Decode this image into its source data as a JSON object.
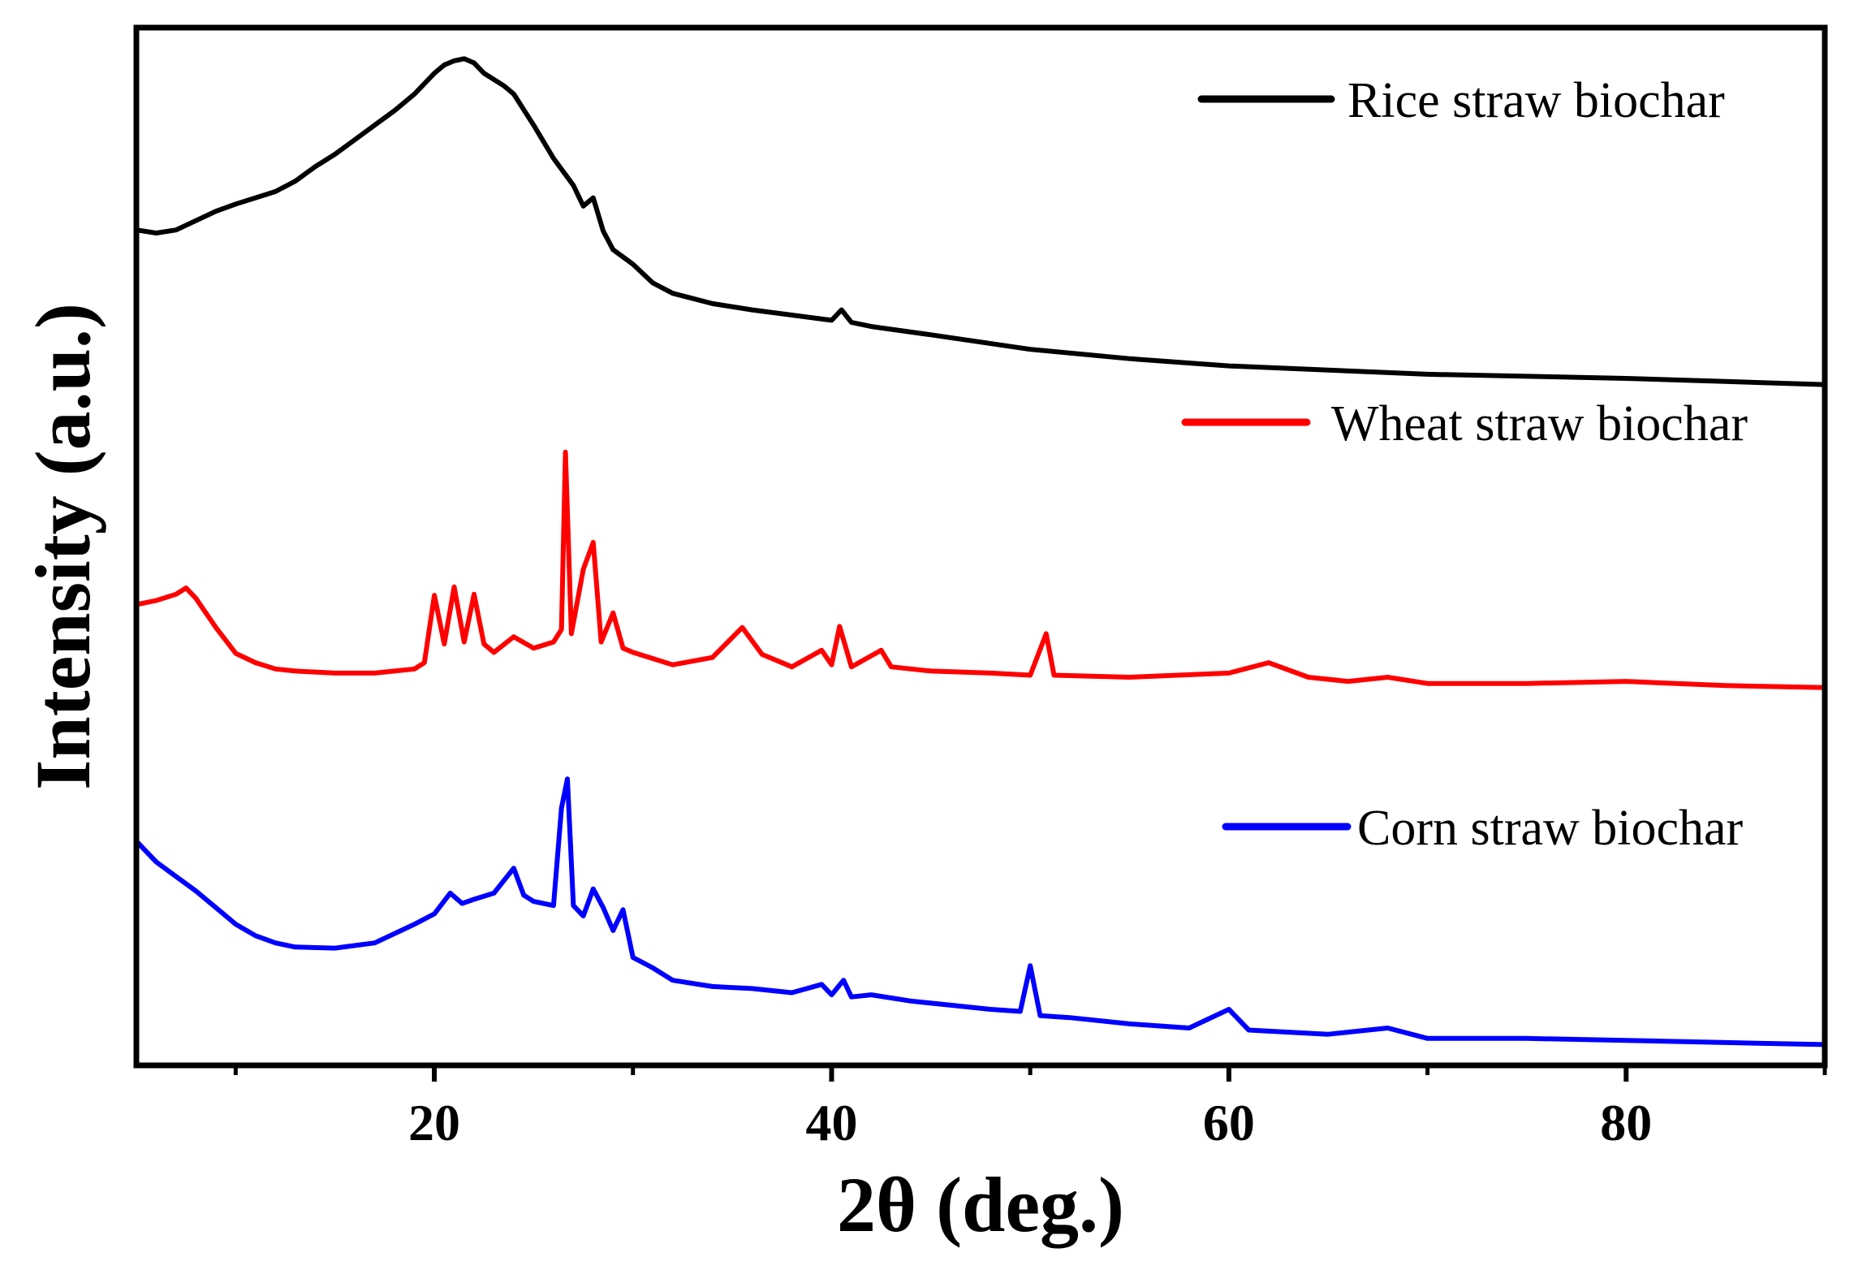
{
  "chart_data": {
    "type": "line",
    "title": "",
    "xlabel": "2θ (deg.)",
    "ylabel": "Intensity (a.u.)",
    "xlim": [
      5,
      90
    ],
    "ylim": [
      0,
      100
    ],
    "x_ticks": [
      20,
      40,
      60,
      80
    ],
    "x_minor_ticks": [
      10,
      30,
      50,
      70,
      90
    ],
    "y_tick_labels": false,
    "grid": false,
    "legend": "per-series, right side next to each curve",
    "series": [
      {
        "name": "Rice straw biochar",
        "color": "#000000",
        "x": [
          5,
          6,
          7,
          8,
          9,
          10,
          11,
          12,
          13,
          14,
          15,
          16,
          17,
          18,
          19,
          20,
          20.5,
          21,
          21.5,
          22,
          22.5,
          23,
          23.5,
          24,
          25,
          26,
          27,
          27.5,
          28,
          28.5,
          29,
          30,
          31,
          32,
          34,
          36,
          38,
          40,
          40.5,
          41,
          42,
          45,
          50,
          55,
          60,
          65,
          70,
          75,
          80,
          85,
          90
        ],
        "values": [
          80.5,
          80.2,
          80.5,
          81.4,
          82.3,
          83.0,
          83.6,
          84.2,
          85.2,
          86.6,
          87.8,
          89.2,
          90.6,
          92.0,
          93.6,
          95.6,
          96.4,
          96.8,
          97.0,
          96.6,
          95.6,
          95.0,
          94.4,
          93.6,
          90.6,
          87.4,
          84.8,
          82.8,
          83.6,
          80.4,
          78.6,
          77.2,
          75.4,
          74.4,
          73.4,
          72.8,
          72.3,
          71.8,
          72.8,
          71.6,
          71.2,
          70.4,
          69.0,
          68.1,
          67.4,
          67.0,
          66.6,
          66.4,
          66.2,
          65.9,
          65.6
        ]
      },
      {
        "name": "Wheat straw biochar",
        "color": "#ff0000",
        "x": [
          5,
          6,
          7,
          7.5,
          8,
          9,
          10,
          11,
          12,
          13,
          15,
          17,
          19,
          19.5,
          20,
          20.5,
          21,
          21.5,
          22,
          22.5,
          23,
          24,
          25,
          26,
          26.4,
          26.6,
          26.9,
          27.5,
          28,
          28.4,
          29,
          29.5,
          30,
          31,
          32,
          34,
          35.5,
          36.5,
          38,
          39.5,
          40,
          40.4,
          41,
          42.5,
          43,
          45,
          48,
          50,
          50.8,
          51.2,
          55,
          60,
          62,
          64,
          66,
          68,
          70,
          75,
          80,
          85,
          90
        ],
        "values": [
          44.4,
          44.8,
          45.4,
          46.0,
          45.0,
          42.2,
          39.7,
          38.8,
          38.2,
          38.0,
          37.8,
          37.8,
          38.2,
          38.8,
          45.3,
          40.6,
          46.1,
          40.8,
          45.4,
          40.6,
          39.8,
          41.3,
          40.2,
          40.8,
          42.0,
          59.1,
          41.6,
          47.8,
          50.4,
          40.8,
          43.6,
          40.2,
          39.8,
          39.2,
          38.6,
          39.3,
          42.2,
          39.6,
          38.4,
          40.0,
          38.6,
          42.3,
          38.4,
          40.0,
          38.4,
          38.0,
          37.8,
          37.6,
          41.6,
          37.6,
          37.4,
          37.8,
          38.8,
          37.4,
          37.0,
          37.4,
          36.8,
          36.8,
          37.0,
          36.6,
          36.4
        ]
      },
      {
        "name": "Corn straw biochar",
        "color": "#0000ff",
        "x": [
          5,
          6,
          7,
          8,
          9,
          10,
          11,
          12,
          13,
          15,
          17,
          19,
          20,
          20.8,
          21.4,
          22,
          23,
          23.5,
          24,
          24.5,
          25,
          26,
          26.4,
          26.7,
          27,
          27.5,
          28,
          28.5,
          29,
          29.5,
          30,
          31,
          32,
          34,
          36,
          38,
          39.5,
          40,
          40.6,
          41,
          42,
          44,
          46,
          48,
          49.5,
          50,
          50.5,
          52,
          55,
          58,
          60,
          61,
          65,
          68,
          70,
          75,
          80,
          85,
          90
        ],
        "values": [
          21.6,
          19.6,
          18.2,
          16.8,
          15.2,
          13.6,
          12.5,
          11.8,
          11.4,
          11.3,
          11.8,
          13.6,
          14.6,
          16.6,
          15.6,
          16.0,
          16.6,
          17.8,
          19.0,
          16.4,
          15.8,
          15.4,
          24.8,
          27.6,
          15.4,
          14.4,
          17.0,
          15.2,
          13.0,
          15.0,
          10.4,
          9.4,
          8.2,
          7.6,
          7.4,
          7.0,
          7.8,
          6.8,
          8.2,
          6.6,
          6.8,
          6.2,
          5.8,
          5.4,
          5.2,
          9.6,
          4.8,
          4.6,
          4.0,
          3.6,
          5.4,
          3.4,
          3.0,
          3.6,
          2.6,
          2.6,
          2.4,
          2.2,
          2.0
        ]
      }
    ]
  }
}
